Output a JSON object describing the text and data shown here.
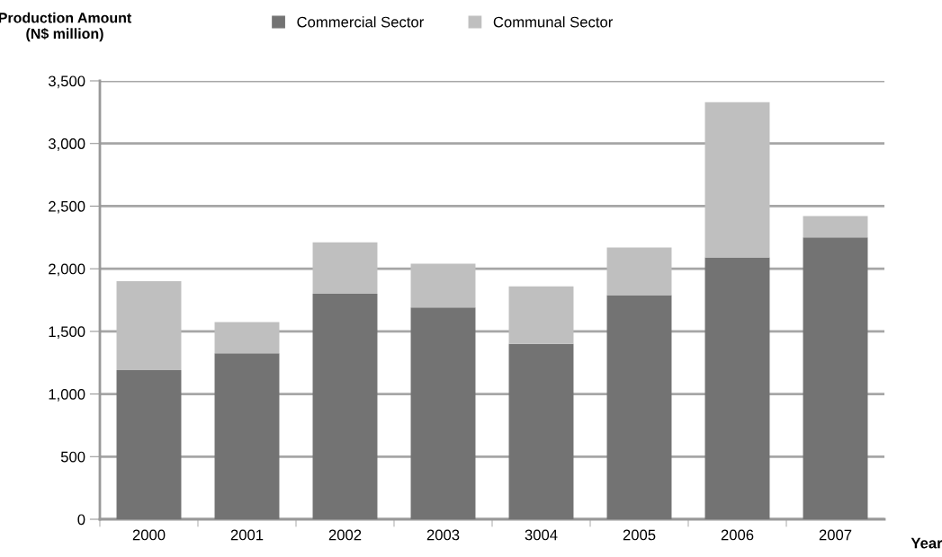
{
  "chart_data": {
    "type": "bar",
    "stacked": true,
    "ylabel": "Production Amount\n(N$ million)",
    "xlabel": "Year",
    "categories": [
      "2000",
      "2001",
      "2002",
      "2003",
      "3004",
      "2005",
      "2006",
      "2007"
    ],
    "series": [
      {
        "name": "Commercial Sector",
        "color": "#737373",
        "values": [
          1190,
          1325,
          1800,
          1690,
          1400,
          1790,
          2090,
          2250
        ]
      },
      {
        "name": "Communal Sector",
        "color": "#bfbfbf",
        "values": [
          710,
          250,
          410,
          350,
          460,
          380,
          1240,
          170
        ]
      }
    ],
    "ylim": [
      0,
      3500
    ],
    "yticks": [
      {
        "value": 0,
        "label": "0"
      },
      {
        "value": 500,
        "label": "500"
      },
      {
        "value": 1000,
        "label": "1,000"
      },
      {
        "value": 1500,
        "label": "1,500"
      },
      {
        "value": 2000,
        "label": "2,000"
      },
      {
        "value": 2500,
        "label": "2,500"
      },
      {
        "value": 3000,
        "label": "3,000"
      },
      {
        "value": 3500,
        "label": "3,500"
      }
    ],
    "grid": "y",
    "legend": "top"
  }
}
